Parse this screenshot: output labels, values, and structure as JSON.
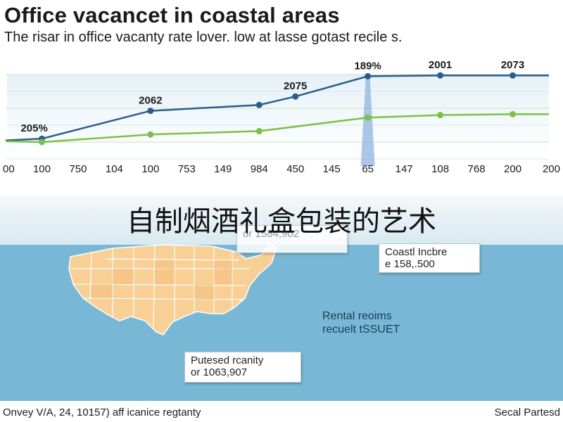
{
  "header": {
    "title": "Office vacancet in coastal areas",
    "subtitle": "The risar in office vacanty rate lover. low at lasse gotast recile s."
  },
  "chart_data": {
    "type": "line",
    "title": "Office vacancet in coastal areas",
    "subtitle": "The risar in office vacanty rate lover. low at lasse gotast recile s.",
    "x_tick_labels": [
      "00",
      "100",
      "750",
      "104",
      "100",
      "753",
      "149",
      "984",
      "450",
      "145",
      "65",
      "147",
      "108",
      "768",
      "200",
      "200"
    ],
    "x": [
      0,
      1,
      2,
      3,
      4,
      5,
      6,
      7,
      8,
      9,
      10,
      11,
      12,
      13,
      14,
      15
    ],
    "ylim": [
      0,
      100
    ],
    "grid": true,
    "legend": "none",
    "highlight_index": 10,
    "series": [
      {
        "color": "#2a5d8c",
        "points": [
          {
            "x": 0,
            "y": 22
          },
          {
            "x": 1,
            "y": 24
          },
          {
            "x": 4,
            "y": 57
          },
          {
            "x": 7,
            "y": 64
          },
          {
            "x": 8,
            "y": 74
          },
          {
            "x": 10,
            "y": 98
          },
          {
            "x": 12,
            "y": 99
          },
          {
            "x": 14,
            "y": 99
          },
          {
            "x": 15,
            "y": 99
          }
        ],
        "point_labels": [
          {
            "x": 1,
            "text": "205%"
          },
          {
            "x": 4,
            "text": "2062"
          },
          {
            "x": 8,
            "text": "2075"
          },
          {
            "x": 10,
            "text": "189%"
          },
          {
            "x": 12,
            "text": "2001"
          },
          {
            "x": 14,
            "text": "2073"
          }
        ]
      },
      {
        "color": "#7cc044",
        "points": [
          {
            "x": 0,
            "y": 21
          },
          {
            "x": 1,
            "y": 20
          },
          {
            "x": 4,
            "y": 29
          },
          {
            "x": 7,
            "y": 33
          },
          {
            "x": 10,
            "y": 49
          },
          {
            "x": 12,
            "y": 52
          },
          {
            "x": 14,
            "y": 53
          },
          {
            "x": 15,
            "y": 53
          }
        ]
      }
    ]
  },
  "overlay_title": "自制烟酒礼盒包装的艺术",
  "map": {
    "callouts": [
      {
        "line1": "",
        "line2": "or 1584,902"
      },
      {
        "line1": "Coastl Incbre",
        "line2": "e 158,.500"
      },
      {
        "line1": "Rental reoims",
        "line2": "recuelt tSSUET"
      },
      {
        "line1": "Putesed rcanity",
        "line2": "or 1063,907"
      }
    ],
    "colors": {
      "ocean": "#78b8d6",
      "land": "#f8cf95",
      "land_border": "#ffffff"
    }
  },
  "footer": {
    "left": "Onvey V/A, 24, 10157) aff icanice regtanty",
    "right": "Secal Partesd"
  }
}
